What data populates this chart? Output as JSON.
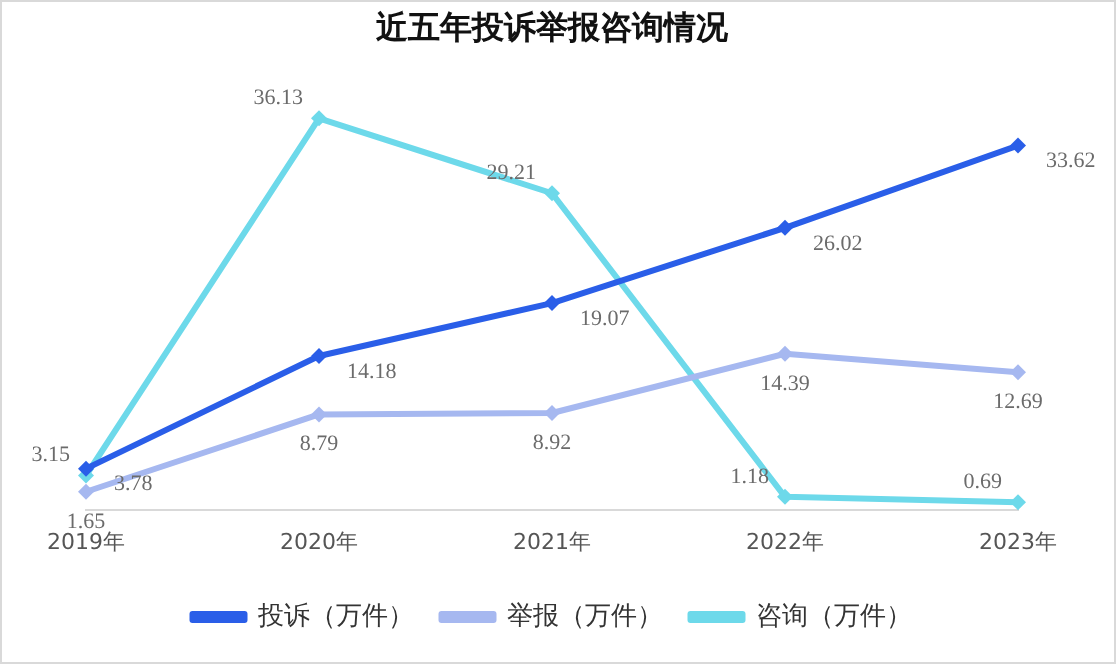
{
  "chart_data": {
    "type": "line",
    "title": "近五年投诉举报咨询情况",
    "categories": [
      "2019年",
      "2020年",
      "2021年",
      "2022年",
      "2023年"
    ],
    "series": [
      {
        "name": "投诉（万件）",
        "color": "#2a5ee8",
        "values": [
          3.78,
          14.18,
          19.07,
          26.02,
          33.62
        ]
      },
      {
        "name": "举报（万件）",
        "color": "#a6b8f0",
        "values": [
          1.65,
          8.79,
          8.92,
          14.39,
          12.69
        ]
      },
      {
        "name": "咨询（万件）",
        "color": "#6dd9ea",
        "values": [
          3.15,
          36.13,
          29.21,
          1.18,
          0.69
        ]
      }
    ],
    "marker": "diamond",
    "line_style": "solid",
    "data_labels": true,
    "legend": "bottom",
    "grid": false,
    "tick_labels": "x"
  }
}
